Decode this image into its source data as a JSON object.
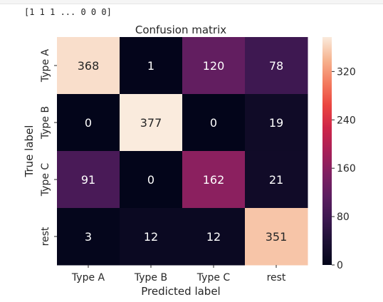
{
  "output": {
    "text": "[1 1 1 ... 0 0 0]"
  },
  "chart_data": {
    "type": "heatmap",
    "title": "Confusion matrix",
    "xlabel": "Predicted label",
    "ylabel": "True label",
    "x_categories": [
      "Type A",
      "Type B",
      "Type C",
      "rest"
    ],
    "y_categories": [
      "Type A",
      "Type B",
      "Type C",
      "rest"
    ],
    "values": [
      [
        368,
        1,
        120,
        78
      ],
      [
        0,
        377,
        0,
        19
      ],
      [
        91,
        0,
        162,
        21
      ],
      [
        3,
        12,
        12,
        351
      ]
    ],
    "colorbar": {
      "ticks": [
        0,
        80,
        160,
        240,
        320
      ],
      "range": [
        0,
        377
      ],
      "colormap": "rocket"
    },
    "annot_light_color": "#ffffff",
    "annot_dark_color": "#262626"
  }
}
